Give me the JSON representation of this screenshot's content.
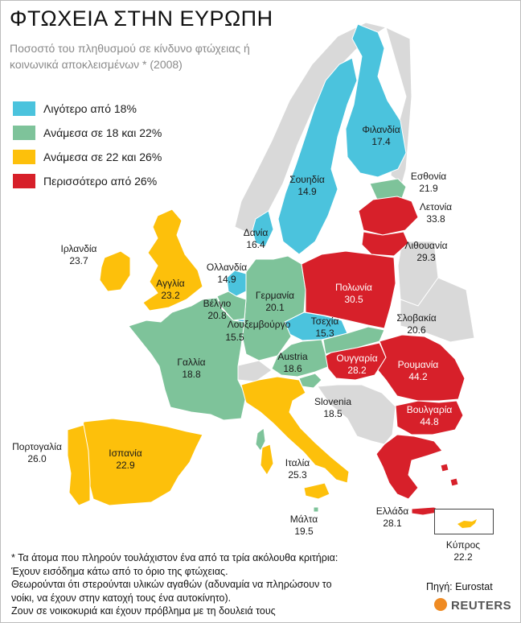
{
  "title": "ΦΤΩΧΕΙΑ ΣΤΗΝ ΕΥΡΩΠΗ",
  "subtitle": "Ποσοστό του πληθυσμού σε κίνδυνο φτώχειας ή κοινωνικά αποκλεισμένων * (2008)",
  "colors": {
    "low": "#4bc3dd",
    "mid": "#7ec39a",
    "high": "#fdc00b",
    "top": "#d7202a",
    "non_eu": "#d9d9d9"
  },
  "legend": [
    {
      "label": "Λιγότερο από 18%",
      "color": "#4bc3dd"
    },
    {
      "label": "Ανάμεσα σε 18 και 22%",
      "color": "#7ec39a"
    },
    {
      "label": "Ανάμεσα σε 22 και 26%",
      "color": "#fdc00b"
    },
    {
      "label": "Περισσότερο από 26%",
      "color": "#d7202a"
    }
  ],
  "countries": {
    "finland": {
      "name": "Φιλανδία",
      "value": "17.4"
    },
    "sweden": {
      "name": "Σουηδία",
      "value": "14.9"
    },
    "estonia": {
      "name": "Εσθονία",
      "value": "21.9"
    },
    "latvia": {
      "name": "Λετονία",
      "value": "33.8"
    },
    "lithuania": {
      "name": "Λιθουανία",
      "value": "29.3"
    },
    "denmark": {
      "name": "Δανία",
      "value": "16.4"
    },
    "ireland": {
      "name": "Ιρλανδία",
      "value": "23.7"
    },
    "uk": {
      "name": "Αγγλία",
      "value": "23.2"
    },
    "netherlands": {
      "name": "Ολλανδία",
      "value": "14.9"
    },
    "belgium": {
      "name": "Βέλγιο",
      "value": "20.8"
    },
    "luxembourg": {
      "name": "Λουξεμβούργο",
      "value": "15.5"
    },
    "germany": {
      "name": "Γερμανία",
      "value": "20.1"
    },
    "poland": {
      "name": "Πολωνία",
      "value": "30.5"
    },
    "czech": {
      "name": "Τσεχία",
      "value": "15.3"
    },
    "slovakia": {
      "name": "Σλοβακία",
      "value": "20.6"
    },
    "france": {
      "name": "Γαλλία",
      "value": "18.8"
    },
    "austria": {
      "name": "Austria",
      "value": "18.6"
    },
    "hungary": {
      "name": "Ουγγαρία",
      "value": "28.2"
    },
    "romania": {
      "name": "Ρουμανία",
      "value": "44.2"
    },
    "bulgaria": {
      "name": "Βουλγαρία",
      "value": "44.8"
    },
    "slovenia": {
      "name": "Slovenia",
      "value": "18.5"
    },
    "portugal": {
      "name": "Πορτογαλία",
      "value": "26.0"
    },
    "spain": {
      "name": "Ισπανία",
      "value": "22.9"
    },
    "italy": {
      "name": "Ιταλία",
      "value": "25.3"
    },
    "malta": {
      "name": "Μάλτα",
      "value": "19.5"
    },
    "greece": {
      "name": "Ελλάδα",
      "value": "28.1"
    },
    "cyprus": {
      "name": "Κύπρος",
      "value": "22.2"
    }
  },
  "footnote": [
    "* Τα άτομα που πληρούν τουλάχιστον ένα από τα τρία ακόλουθα κριτήρια:",
    "Έχουν εισόδημα κάτω από το όριο της φτώχειας.",
    "Θεωρούνται ότι στερούνται υλικών αγαθών (αδυναμία να πληρώσουν το",
    "νοίκι, να έχουν στην κατοχή τους ένα αυτοκίνητο).",
    "Ζουν σε νοικοκυριά και έχουν πρόβλημα με τη δουλειά τους"
  ],
  "source": "Πηγή: Eurostat",
  "logo": "REUTERS"
}
